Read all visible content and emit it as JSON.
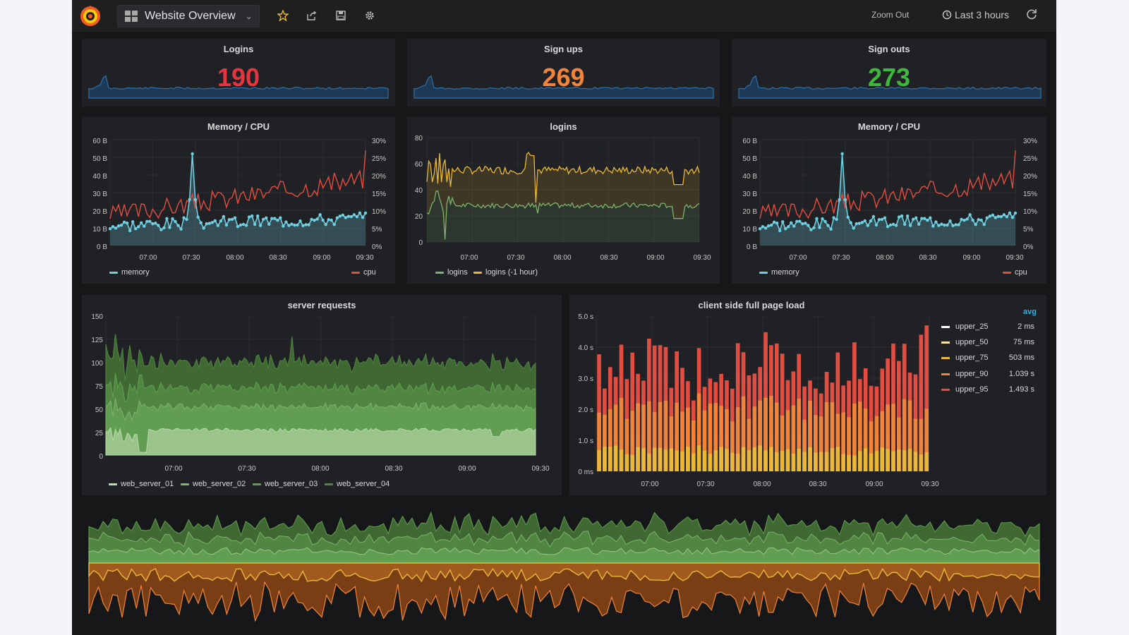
{
  "topbar": {
    "dashboard_title": "Website Overview",
    "zoom_out_label": "Zoom Out",
    "time_range_label": "Last 3 hours",
    "icons": [
      "grid-icon",
      "chevron-down-icon",
      "star-icon",
      "share-icon",
      "save-icon",
      "gear-icon",
      "clock-icon",
      "refresh-icon"
    ]
  },
  "colors": {
    "memory": "#6ed0e0",
    "cpu": "#e24d42",
    "logins": "#7eb26d",
    "logins_prev": "#eab839",
    "stat_red": "#e5363f",
    "stat_orange": "#ef843c",
    "stat_green": "#3db83d",
    "upper_25": "#ffffff",
    "upper_50": "#fce2a0",
    "upper_75": "#eab839",
    "upper_90": "#ef843c",
    "upper_95": "#e24d42"
  },
  "stats": [
    {
      "title": "Logins",
      "value": "190"
    },
    {
      "title": "Sign ups",
      "value": "269"
    },
    {
      "title": "Sign outs",
      "value": "273"
    }
  ],
  "memcpu_left": {
    "title": "Memory / CPU",
    "left_ticks": [
      "60 B",
      "50 B",
      "40 B",
      "30 B",
      "20 B",
      "10 B",
      "0 B"
    ],
    "right_ticks": [
      "30%",
      "25%",
      "20%",
      "15%",
      "10%",
      "5%",
      "0%"
    ],
    "x_ticks": [
      "07:00",
      "07:30",
      "08:00",
      "08:30",
      "09:00",
      "09:30"
    ],
    "legend_left": "memory",
    "legend_right": "cpu"
  },
  "logins_panel": {
    "title": "logins",
    "y_ticks": [
      "80",
      "60",
      "40",
      "20",
      "0"
    ],
    "x_ticks": [
      "07:00",
      "07:30",
      "08:00",
      "08:30",
      "09:00",
      "09:30"
    ],
    "legend": [
      "logins",
      "logins (-1 hour)"
    ]
  },
  "memcpu_right": {
    "title": "Memory / CPU",
    "left_ticks": [
      "60 B",
      "50 B",
      "40 B",
      "30 B",
      "20 B",
      "10 B",
      "0 B"
    ],
    "right_ticks": [
      "30%",
      "25%",
      "20%",
      "15%",
      "10%",
      "5%",
      "0%"
    ],
    "x_ticks": [
      "07:00",
      "07:30",
      "08:00",
      "08:30",
      "09:00",
      "09:30"
    ],
    "legend_left": "memory",
    "legend_right": "cpu"
  },
  "server_requests": {
    "title": "server requests",
    "y_ticks": [
      "150",
      "125",
      "100",
      "75",
      "50",
      "25",
      "0"
    ],
    "x_ticks": [
      "07:00",
      "07:30",
      "08:00",
      "08:30",
      "09:00",
      "09:30"
    ],
    "legend": [
      "web_server_01",
      "web_server_02",
      "web_server_03",
      "web_server_04"
    ]
  },
  "page_load": {
    "title": "client side full page load",
    "y_ticks": [
      "5.0 s",
      "4.0 s",
      "3.0 s",
      "2.0 s",
      "1.0 s",
      "0 ms"
    ],
    "x_ticks": [
      "07:00",
      "07:30",
      "08:00",
      "08:30",
      "09:00",
      "09:30"
    ],
    "legend_header": "avg",
    "legend": [
      {
        "name": "upper_25",
        "value": "2 ms"
      },
      {
        "name": "upper_50",
        "value": "75 ms"
      },
      {
        "name": "upper_75",
        "value": "503 ms"
      },
      {
        "name": "upper_90",
        "value": "1.039 s"
      },
      {
        "name": "upper_95",
        "value": "1.493 s"
      }
    ]
  },
  "chart_data": [
    {
      "type": "line",
      "title": "Memory / CPU",
      "series": [
        {
          "name": "memory"
        },
        {
          "name": "cpu"
        }
      ],
      "ylim": [
        0,
        60
      ],
      "y2lim": [
        0,
        30
      ]
    },
    {
      "type": "line",
      "title": "logins",
      "series": [
        {
          "name": "logins"
        },
        {
          "name": "logins (-1 hour)"
        }
      ],
      "ylim": [
        0,
        80
      ]
    },
    {
      "type": "area",
      "title": "server requests",
      "series": [
        {
          "name": "web_server_01"
        },
        {
          "name": "web_server_02"
        },
        {
          "name": "web_server_03"
        },
        {
          "name": "web_server_04"
        }
      ],
      "ylim": [
        0,
        150
      ]
    },
    {
      "type": "bar",
      "title": "client side full page load",
      "series": [
        {
          "name": "upper_25"
        },
        {
          "name": "upper_50"
        },
        {
          "name": "upper_75"
        },
        {
          "name": "upper_90"
        },
        {
          "name": "upper_95"
        }
      ],
      "ylim": [
        0,
        5
      ]
    }
  ]
}
